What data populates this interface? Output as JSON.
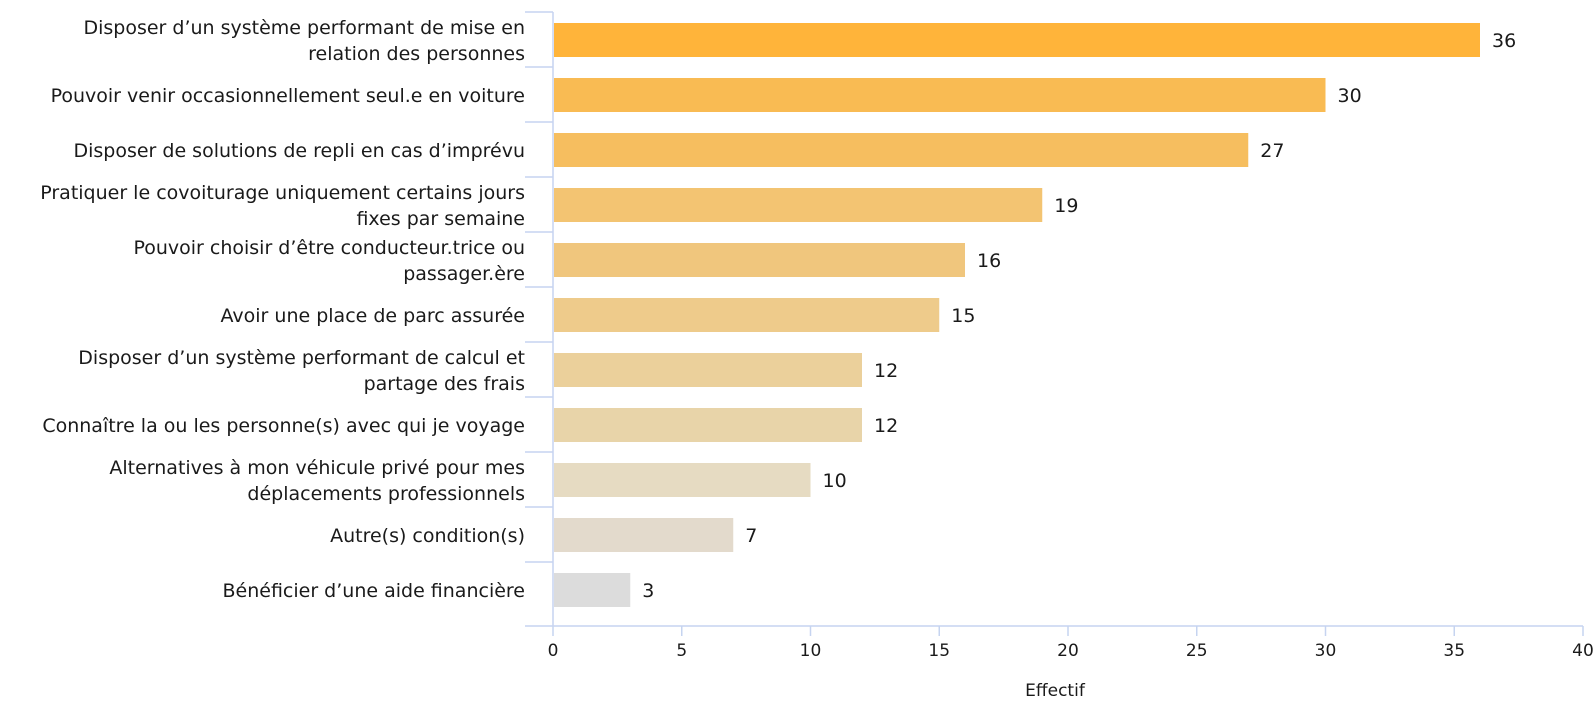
{
  "chart_data": {
    "type": "bar",
    "orientation": "horizontal",
    "categories": [
      [
        "Disposer d’un système performant de mise en",
        "relation des personnes"
      ],
      [
        "Pouvoir venir occasionnellement seul.e en voiture"
      ],
      [
        "Disposer de solutions de repli en cas d’imprévu"
      ],
      [
        "Pratiquer le covoiturage uniquement certains jours",
        "fixes par semaine"
      ],
      [
        "Pouvoir choisir d’être conducteur.trice ou",
        "passager.ère"
      ],
      [
        "Avoir une place de parc assurée"
      ],
      [
        "Disposer d’un système performant de calcul et",
        "partage des frais"
      ],
      [
        "Connaître la ou les personne(s) avec qui je voyage"
      ],
      [
        "Alternatives à mon véhicule privé pour mes",
        "déplacements professionnels"
      ],
      [
        "Autre(s) condition(s)"
      ],
      [
        "Bénéficier d’une aide financière"
      ]
    ],
    "values": [
      36,
      30,
      27,
      19,
      16,
      15,
      12,
      12,
      10,
      7,
      3
    ],
    "bar_colors": [
      "#ffb43a",
      "#f9bb53",
      "#f6be5f",
      "#f3c472",
      "#f0c67d",
      "#eecb8b",
      "#ebd09b",
      "#e8d4a9",
      "#e6dbc2",
      "#e3dacc",
      "#dcdcdc"
    ],
    "axis_color": "#c6d4f0",
    "xlabel": "Effectif",
    "xlim": [
      0,
      40
    ],
    "xticks": [
      0,
      5,
      10,
      15,
      20,
      25,
      30,
      35,
      40
    ],
    "grid": false,
    "legend": "none"
  }
}
